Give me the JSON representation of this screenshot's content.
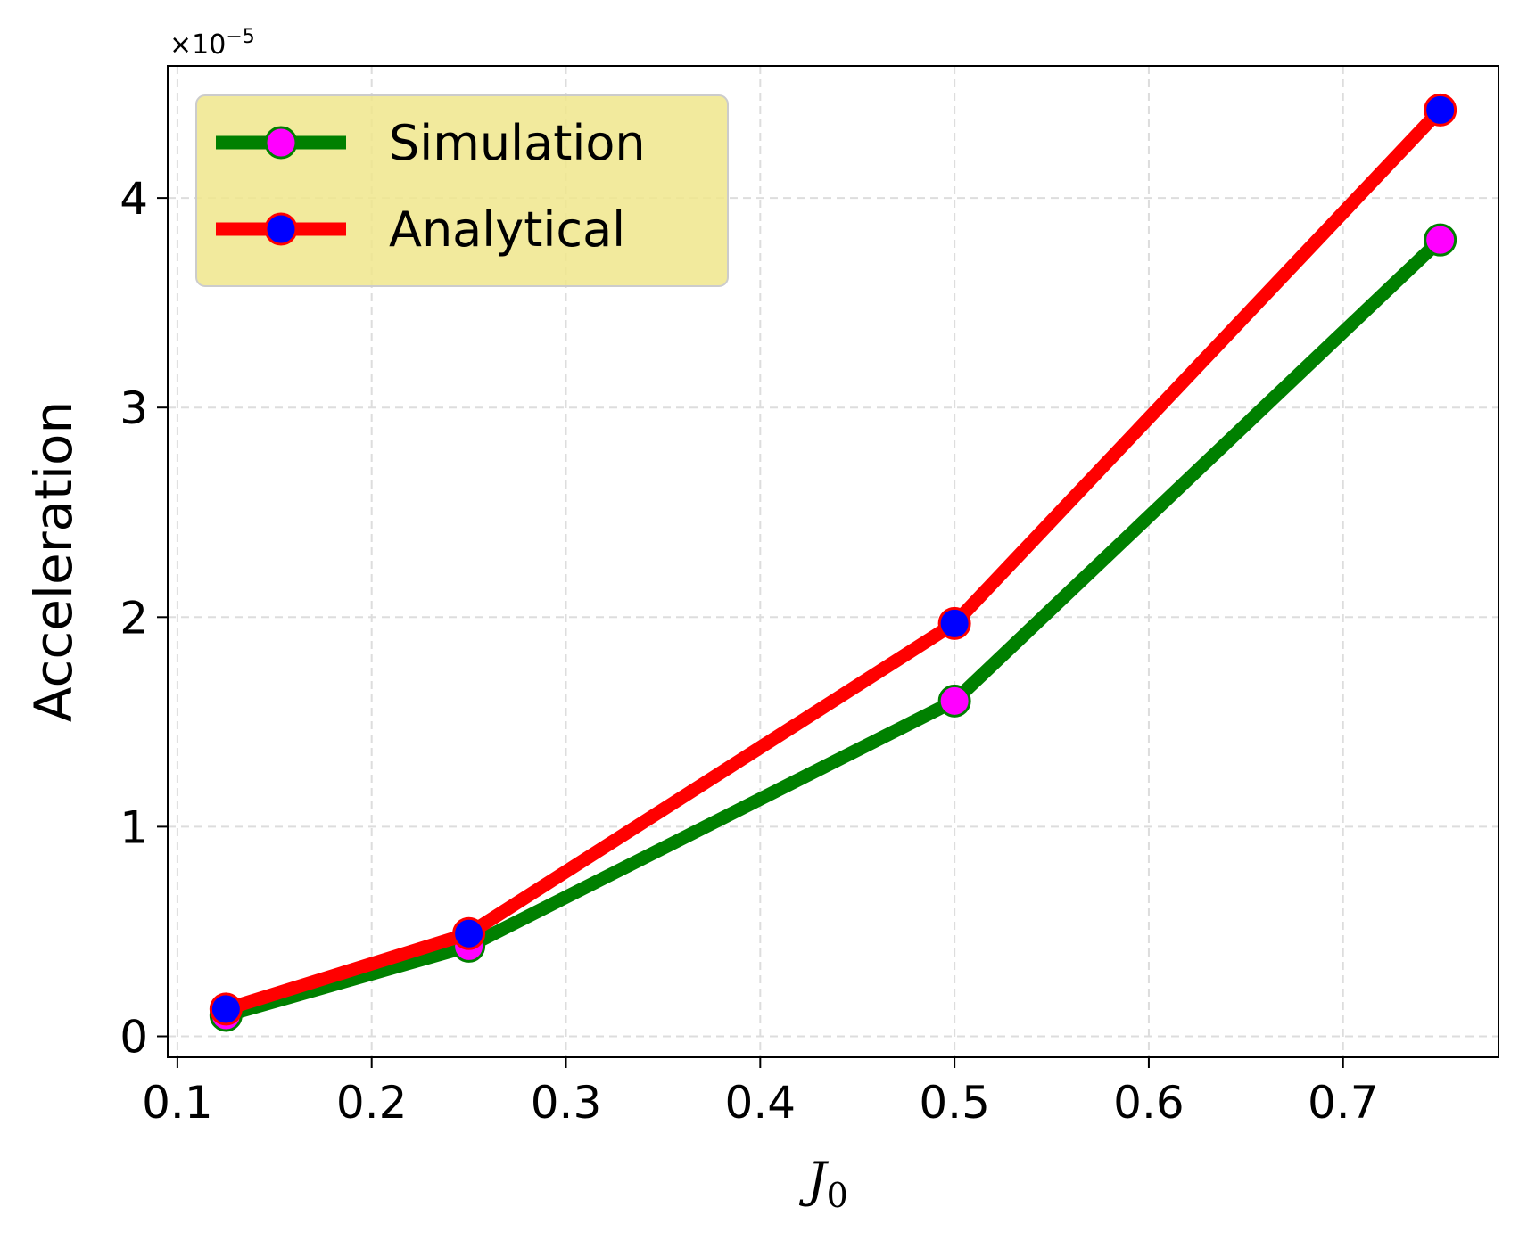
{
  "chart_data": {
    "type": "line",
    "title": "",
    "xlabel": "J",
    "xlabel_subscript": "0",
    "ylabel": "Acceleration",
    "y_offset_text": "×10",
    "y_offset_exponent": "−5",
    "x": [
      0.125,
      0.25,
      0.5,
      0.75
    ],
    "xlim": [
      0.095,
      0.78
    ],
    "ylim": [
      -0.1,
      4.63
    ],
    "xticks": [
      0.1,
      0.2,
      0.3,
      0.4,
      0.5,
      0.6,
      0.7
    ],
    "xtick_labels": [
      "0.1",
      "0.2",
      "0.3",
      "0.4",
      "0.5",
      "0.6",
      "0.7"
    ],
    "yticks": [
      0,
      1,
      2,
      3,
      4
    ],
    "ytick_labels": [
      "0",
      "1",
      "2",
      "3",
      "4"
    ],
    "grid": true,
    "legend_position": "top-left",
    "series": [
      {
        "name": "Simulation",
        "values": [
          0.1,
          0.43,
          1.6,
          3.8
        ],
        "line_color": "#008000",
        "marker_fill": "#ff00ff",
        "marker_edge": "#008000"
      },
      {
        "name": "Analytical",
        "values": [
          0.13,
          0.49,
          1.97,
          4.42
        ],
        "line_color": "#ff0000",
        "marker_fill": "#0000ff",
        "marker_edge": "#ff0000"
      }
    ]
  }
}
